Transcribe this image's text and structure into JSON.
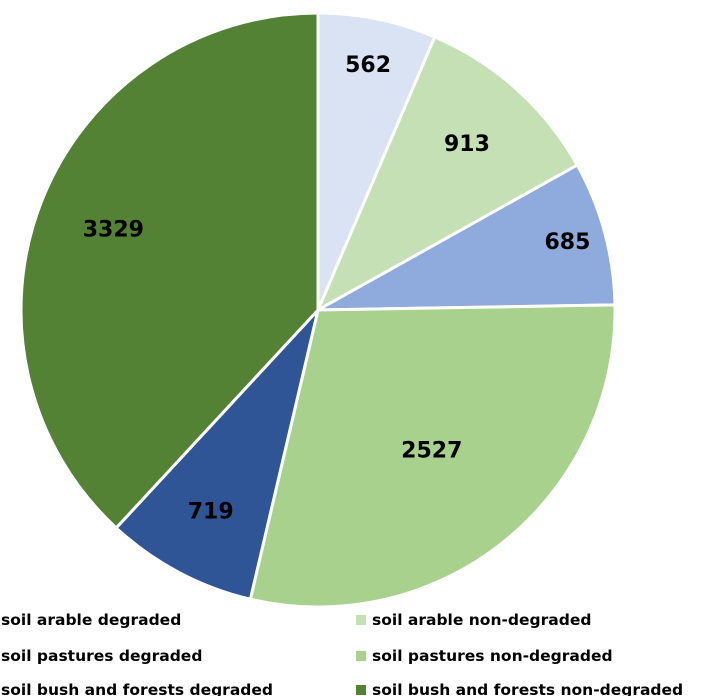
{
  "chart_data": {
    "type": "pie",
    "title": "",
    "categories": [
      "soil arable degraded",
      "soil arable non-degraded",
      "soil pastures degraded",
      "soil pastures non-degraded",
      "soil bush and forests degraded",
      "soil bush and forests non-degraded"
    ],
    "values": [
      562,
      913,
      685,
      2527,
      719,
      3329
    ],
    "colors": [
      "#dae3f3",
      "#c5e0b4",
      "#8faadc",
      "#a9d18e",
      "#2f5597",
      "#548235"
    ],
    "data_labels": [
      "562",
      "913",
      "685",
      "2527",
      "719",
      "3329"
    ],
    "slice_label_color": "#000000",
    "border_color": "#ffffff",
    "legend": {
      "position": "bottom",
      "columns": 2
    },
    "start_angle": "12 o'clock",
    "direction": "clockwise"
  }
}
